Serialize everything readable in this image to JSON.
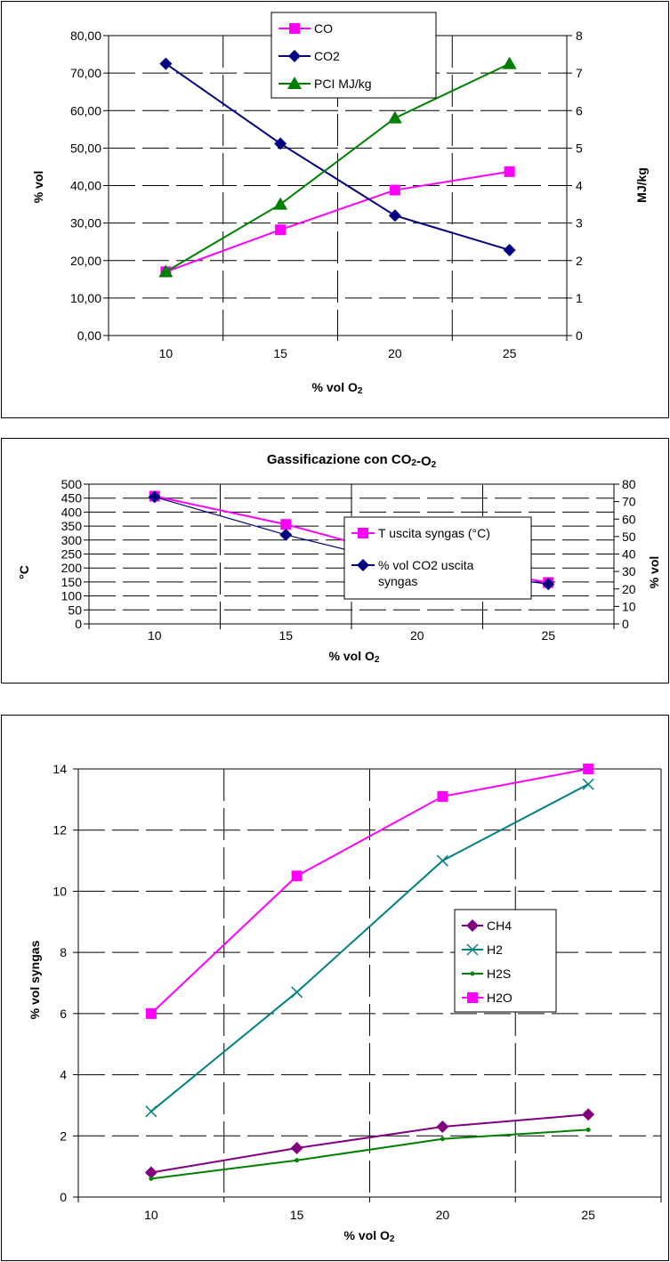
{
  "colors": {
    "CO": "#ff00ff",
    "CO2": "#000080",
    "PCI": "#008000",
    "T": "#ff00ff",
    "CH4": "#800080",
    "H2": "#008080",
    "H2S": "#008000",
    "H2O": "#ff00ff"
  },
  "chart_data": [
    {
      "type": "line",
      "title": "",
      "xlabel": "% vol O2",
      "ylabel": "% vol",
      "y2label": "MJ/kg",
      "categories": [
        "10",
        "15",
        "20",
        "25"
      ],
      "ylim": [
        0,
        80
      ],
      "y2lim": [
        0,
        8
      ],
      "yticks": [
        "0,00",
        "10,00",
        "20,00",
        "30,00",
        "40,00",
        "50,00",
        "60,00",
        "70,00",
        "80,00"
      ],
      "y2ticks": [
        "0",
        "1",
        "2",
        "3",
        "4",
        "5",
        "6",
        "7",
        "8"
      ],
      "grid": true,
      "legend_position": "top-center",
      "series": [
        {
          "name": "CO",
          "axis": "left",
          "marker": "square",
          "color": "#ff00ff",
          "values": [
            17,
            28.2,
            38.8,
            43.7
          ]
        },
        {
          "name": "CO2",
          "axis": "left",
          "marker": "diamond",
          "color": "#000080",
          "values": [
            72.5,
            51.2,
            32,
            22.8
          ]
        },
        {
          "name": "PCI MJ/kg",
          "axis": "right",
          "marker": "triangle",
          "color": "#008000",
          "values": [
            1.7,
            3.5,
            5.8,
            7.25
          ]
        }
      ]
    },
    {
      "type": "line",
      "title": "Gassificazione con CO2-O2",
      "xlabel": "% vol O2",
      "ylabel": "°C",
      "y2label": "% vol",
      "categories": [
        "10",
        "15",
        "20",
        "25"
      ],
      "ylim": [
        0,
        500
      ],
      "y2lim": [
        0,
        80
      ],
      "yticks": [
        "0",
        "50",
        "100",
        "150",
        "200",
        "250",
        "300",
        "350",
        "400",
        "450",
        "500"
      ],
      "y2ticks": [
        "0",
        "10",
        "20",
        "30",
        "40",
        "50",
        "60",
        "70",
        "80"
      ],
      "grid": true,
      "legend_position": "top-right",
      "series": [
        {
          "name": "T uscita syngas (°C)",
          "axis": "left",
          "marker": "square",
          "color": "#ff00ff",
          "values": [
            457,
            356,
            229,
            148
          ]
        },
        {
          "name": "% vol CO2 uscita syngas",
          "axis": "right",
          "marker": "diamond",
          "color": "#000080",
          "values": [
            72.7,
            51,
            32.5,
            22.8
          ]
        }
      ]
    },
    {
      "type": "line",
      "title": "",
      "xlabel": "% vol O2",
      "ylabel": "% vol syngas",
      "categories": [
        "10",
        "15",
        "20",
        "25"
      ],
      "ylim": [
        0,
        14
      ],
      "yticks": [
        "0",
        "2",
        "4",
        "6",
        "8",
        "10",
        "12",
        "14"
      ],
      "grid": true,
      "legend_position": "right",
      "series": [
        {
          "name": "CH4",
          "axis": "left",
          "marker": "diamond",
          "color": "#800080",
          "values": [
            0.8,
            1.6,
            2.3,
            2.7
          ]
        },
        {
          "name": "H2",
          "axis": "left",
          "marker": "x",
          "color": "#008080",
          "values": [
            2.8,
            6.7,
            11,
            13.5
          ]
        },
        {
          "name": "H2S",
          "axis": "left",
          "marker": "dot",
          "color": "#008000",
          "values": [
            0.6,
            1.2,
            1.9,
            2.2
          ]
        },
        {
          "name": "H2O",
          "axis": "left",
          "marker": "square",
          "color": "#ff00ff",
          "values": [
            6,
            10.5,
            13.1,
            14
          ]
        }
      ]
    }
  ]
}
